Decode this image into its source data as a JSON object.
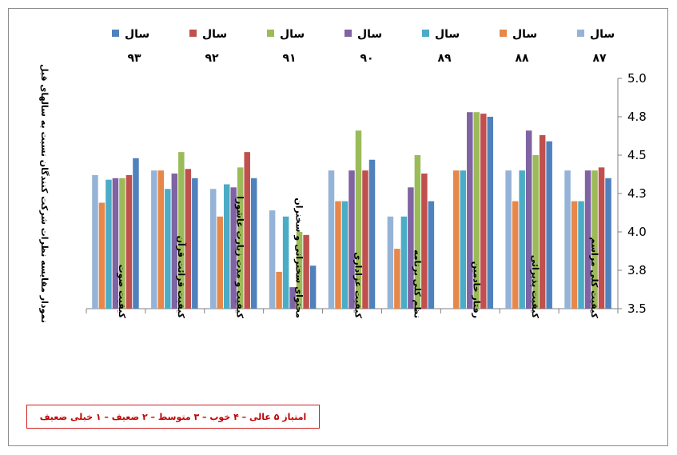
{
  "chart_data": {
    "type": "bar",
    "ylabel": "نمودار مقایسه نظرات شرکت کنندگان نسبت به سالهای قبل",
    "ylim": [
      3.5,
      5.0
    ],
    "yticks": [
      "3.5",
      "3.8",
      "4.0",
      "4.3",
      "4.5",
      "4.8",
      "5.0"
    ],
    "ytick_values": [
      3.5,
      3.75,
      4.0,
      4.25,
      4.5,
      4.75,
      5.0
    ],
    "grid": false,
    "legend_position": "top",
    "categories": [
      "کیفیت کلی مراسم",
      "کیفیت پذیرائی",
      "رفتار خادمین",
      "نظم کلی برنامه",
      "کیفیت عزاداری",
      "محتوای سخنرانی و سخنران",
      "کیفیت و مدت زیارت عاشورا",
      "کیفیت قرائت قرآن",
      "کیفیت صوت"
    ],
    "series": [
      {
        "name": "سال ۸۷",
        "color": "#95b3d7",
        "values": [
          4.4,
          4.4,
          null,
          4.1,
          4.4,
          4.14,
          4.28,
          4.4,
          4.37
        ]
      },
      {
        "name": "سال ۸۸",
        "color": "#e7874a",
        "values": [
          4.2,
          4.2,
          4.4,
          3.89,
          4.2,
          3.74,
          4.1,
          4.4,
          4.19
        ]
      },
      {
        "name": "سال ۸۹",
        "color": "#4bacc6",
        "values": [
          4.2,
          4.4,
          4.4,
          4.1,
          4.2,
          4.1,
          4.31,
          4.28,
          4.34
        ]
      },
      {
        "name": "سال ۹۰",
        "color": "#7f63a2",
        "values": [
          4.4,
          4.66,
          4.78,
          4.29,
          4.4,
          3.64,
          4.29,
          4.38,
          4.35
        ]
      },
      {
        "name": "سال ۹۱",
        "color": "#9bbb59",
        "values": [
          4.4,
          4.5,
          4.78,
          4.5,
          4.66,
          4.0,
          4.42,
          4.52,
          4.35
        ]
      },
      {
        "name": "سال ۹۲",
        "color": "#c0504d",
        "values": [
          4.42,
          4.63,
          4.77,
          4.38,
          4.4,
          3.98,
          4.52,
          4.41,
          4.37
        ]
      },
      {
        "name": "سال ۹۳",
        "color": "#4f81bd",
        "values": [
          4.35,
          4.59,
          4.75,
          4.2,
          4.47,
          3.78,
          4.35,
          4.35,
          4.48
        ]
      }
    ]
  },
  "legend_items": [
    {
      "label": "سال",
      "number": "۹۳"
    },
    {
      "label": "سال",
      "number": "۹۲"
    },
    {
      "label": "سال",
      "number": "۹۱"
    },
    {
      "label": "سال",
      "number": "۹۰"
    },
    {
      "label": "سال",
      "number": "۸۹"
    },
    {
      "label": "سال",
      "number": "۸۸"
    },
    {
      "label": "سال",
      "number": "۸۷"
    }
  ],
  "note": "امتیاز ۵ عالی – ۴ خوب – ۳ متوسط – ۲ ضعیف – ۱ خیلی ضعیف"
}
